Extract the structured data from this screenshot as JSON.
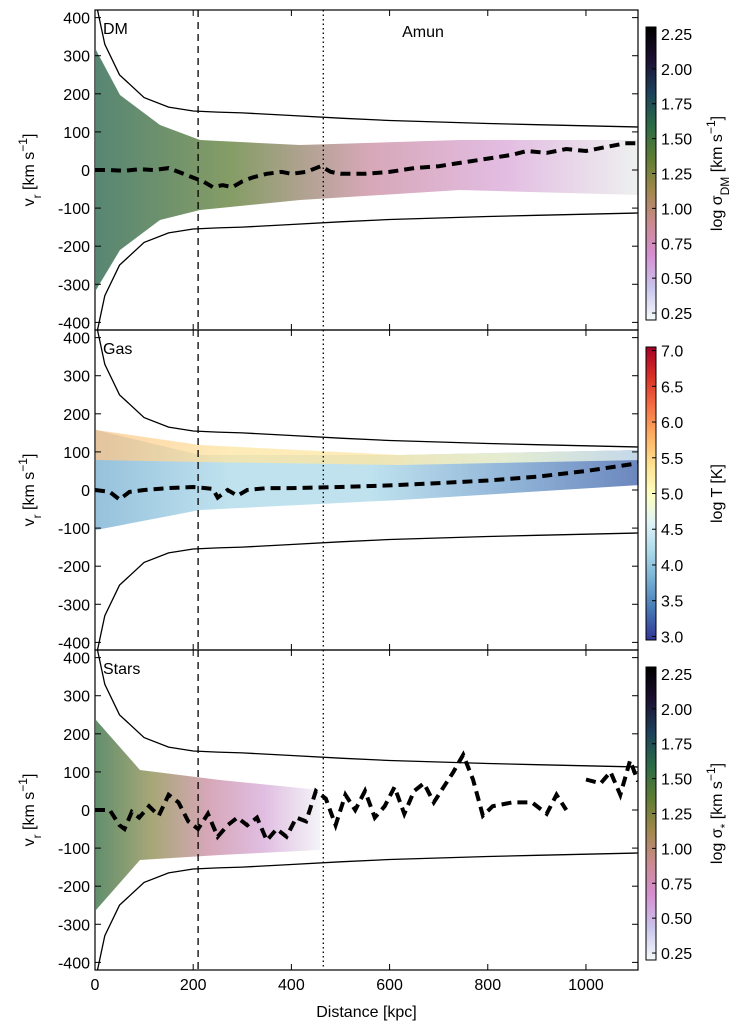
{
  "chart_data": [
    {
      "type": "line",
      "label": "DM",
      "title": "Amun",
      "ylabel": [
        "v",
        "r",
        " [km s",
        "−1",
        "]"
      ],
      "xlim": [
        0,
        1106
      ],
      "ylim": [
        -420,
        420
      ],
      "yticks": [
        -400,
        -300,
        -200,
        -100,
        0,
        100,
        200,
        300,
        400
      ],
      "vlines": [
        {
          "value": 210,
          "style": "dashed"
        },
        {
          "value": 465,
          "style": "dotted"
        }
      ],
      "series": [
        {
          "color": "#000000",
          "style": "solid",
          "x": [
            5,
            20,
            50,
            100,
            150,
            200,
            250,
            300,
            400,
            500,
            600,
            700,
            800,
            900,
            1000,
            1106
          ],
          "values": [
            420,
            330,
            250,
            190,
            165,
            155,
            152,
            150,
            143,
            136,
            130,
            126,
            122,
            119,
            116,
            113
          ]
        },
        {
          "color": "#000000",
          "style": "solid",
          "x": [
            5,
            20,
            50,
            100,
            150,
            200,
            250,
            300,
            400,
            500,
            600,
            700,
            800,
            900,
            1000,
            1106
          ],
          "values": [
            -420,
            -330,
            -250,
            -190,
            -165,
            -155,
            -152,
            -150,
            -143,
            -136,
            -130,
            -126,
            -122,
            -119,
            -116,
            -113
          ]
        },
        {
          "color": "#000000",
          "style": "thickdash",
          "x": [
            0,
            30,
            60,
            90,
            120,
            150,
            170,
            200,
            220,
            240,
            260,
            280,
            300,
            320,
            350,
            380,
            400,
            430,
            460,
            480,
            500,
            550,
            600,
            650,
            700,
            750,
            800,
            850,
            880,
            920,
            960,
            1000,
            1040,
            1080,
            1106
          ],
          "values": [
            0,
            0,
            -2,
            2,
            0,
            5,
            -5,
            -20,
            -30,
            -45,
            -40,
            -45,
            -30,
            -20,
            -10,
            -5,
            -10,
            -5,
            10,
            -5,
            -10,
            -10,
            -5,
            5,
            10,
            20,
            30,
            40,
            50,
            45,
            55,
            50,
            60,
            70,
            70
          ]
        }
      ],
      "colorbar": {
        "label": [
          "log σ",
          "DM",
          " [km s",
          "−1",
          "]"
        ],
        "lim": [
          0.2,
          2.3
        ],
        "ticks": [
          0.25,
          {
            "value": 0.5,
            "label": "0.50"
          },
          0.75,
          {
            "value": 1,
            "label": "1.00"
          },
          1.25,
          {
            "value": 1.5,
            "label": "1.50"
          },
          1.75,
          {
            "value": 2,
            "label": "2.00"
          },
          2.25
        ],
        "colors": [
          "#f5fbfb",
          "#c9c4ec",
          "#d58fd0",
          "#c98a8f",
          "#a0884c",
          "#5c7c33",
          "#2a6a47",
          "#1d3f5a",
          "#1c1030",
          "#000000"
        ]
      }
    },
    {
      "type": "line",
      "label": "Gas",
      "ylabel": [
        "v",
        "r",
        " [km s",
        "−1",
        "]"
      ],
      "xlim": [
        0,
        1106
      ],
      "ylim": [
        -420,
        420
      ],
      "yticks": [
        -400,
        -300,
        -200,
        -100,
        0,
        100,
        200,
        300,
        400
      ],
      "vlines": [
        {
          "value": 210,
          "style": "dashed"
        },
        {
          "value": 465,
          "style": "dotted"
        }
      ],
      "series": [
        {
          "color": "#000000",
          "style": "solid",
          "x": [
            5,
            20,
            50,
            100,
            150,
            200,
            250,
            300,
            400,
            500,
            600,
            700,
            800,
            900,
            1000,
            1106
          ],
          "values": [
            420,
            330,
            250,
            190,
            165,
            155,
            152,
            150,
            143,
            136,
            130,
            126,
            122,
            119,
            116,
            113
          ]
        },
        {
          "color": "#000000",
          "style": "solid",
          "x": [
            5,
            20,
            50,
            100,
            150,
            200,
            250,
            300,
            400,
            500,
            600,
            700,
            800,
            900,
            1000,
            1106
          ],
          "values": [
            -420,
            -330,
            -250,
            -190,
            -165,
            -155,
            -152,
            -150,
            -143,
            -136,
            -130,
            -126,
            -122,
            -119,
            -116,
            -113
          ]
        },
        {
          "color": "#000000",
          "style": "thickdash",
          "x": [
            0,
            30,
            50,
            70,
            100,
            150,
            200,
            240,
            250,
            270,
            290,
            310,
            350,
            400,
            500,
            600,
            700,
            800,
            900,
            1000,
            1106
          ],
          "values": [
            0,
            -5,
            -25,
            -5,
            0,
            5,
            8,
            3,
            -20,
            0,
            -15,
            0,
            5,
            5,
            8,
            12,
            18,
            25,
            35,
            50,
            70
          ]
        }
      ],
      "colorbar": {
        "label": [
          "log T [K]"
        ],
        "lim": [
          2.95,
          7.05
        ],
        "ticks": [
          {
            "value": 3,
            "label": "3.0"
          },
          3.5,
          {
            "value": 4,
            "label": "4.0"
          },
          4.5,
          {
            "value": 5,
            "label": "5.0"
          },
          5.5,
          {
            "value": 6,
            "label": "6.0"
          },
          6.5,
          {
            "value": 7,
            "label": "7.0"
          }
        ],
        "colors": [
          "#313695",
          "#4575b4",
          "#74add1",
          "#abd9e9",
          "#e0f3f8",
          "#ffffbf",
          "#fee090",
          "#fdae61",
          "#f46d43",
          "#d73027",
          "#a50026"
        ]
      }
    },
    {
      "type": "line",
      "label": "Stars",
      "ylabel": [
        "v",
        "r",
        " [km s",
        "−1",
        "]"
      ],
      "xlabel": "Distance [kpc]",
      "xlim": [
        0,
        1106
      ],
      "ylim": [
        -420,
        420
      ],
      "xticks": [
        0,
        200,
        400,
        600,
        800,
        1000
      ],
      "yticks": [
        -400,
        -300,
        -200,
        -100,
        0,
        100,
        200,
        300,
        400
      ],
      "vlines": [
        {
          "value": 210,
          "style": "dashed"
        },
        {
          "value": 465,
          "style": "dotted"
        }
      ],
      "series": [
        {
          "color": "#000000",
          "style": "solid",
          "x": [
            5,
            20,
            50,
            100,
            150,
            200,
            250,
            300,
            400,
            500,
            600,
            700,
            800,
            900,
            1000,
            1106
          ],
          "values": [
            420,
            330,
            250,
            190,
            165,
            155,
            152,
            150,
            143,
            136,
            130,
            126,
            122,
            119,
            116,
            113
          ]
        },
        {
          "color": "#000000",
          "style": "solid",
          "x": [
            5,
            20,
            50,
            100,
            150,
            200,
            250,
            300,
            400,
            500,
            600,
            700,
            800,
            900,
            1000,
            1106
          ],
          "values": [
            -420,
            -330,
            -250,
            -190,
            -165,
            -155,
            -152,
            -150,
            -143,
            -136,
            -130,
            -126,
            -122,
            -119,
            -116,
            -113
          ]
        },
        {
          "color": "#000000",
          "style": "thickdash",
          "x": [
            0,
            30,
            50,
            60,
            75,
            90,
            110,
            130,
            150,
            170,
            190,
            210,
            230,
            250,
            270,
            290,
            310,
            330,
            350,
            370,
            390,
            410,
            430,
            450,
            470,
            490,
            510,
            530,
            550,
            570,
            590,
            610,
            630,
            650,
            670,
            690,
            710,
            730,
            750,
            770,
            790,
            810,
            850,
            890,
            920,
            940,
            960,
            980,
            1000,
            1030,
            1050,
            1070,
            1090,
            1106
          ],
          "values": [
            0,
            0,
            -40,
            -50,
            -5,
            -20,
            10,
            -15,
            40,
            20,
            -30,
            -50,
            -10,
            -70,
            -40,
            -20,
            -40,
            -20,
            -80,
            -50,
            -70,
            -20,
            -30,
            50,
            30,
            -40,
            40,
            0,
            50,
            -20,
            10,
            60,
            -10,
            50,
            70,
            20,
            60,
            100,
            145,
            80,
            -15,
            10,
            20,
            20,
            -10,
            40,
            0,
            null,
            80,
            70,
            100,
            40,
            130,
            75
          ]
        }
      ],
      "colorbar": {
        "label": [
          "log σ",
          "*",
          " [km s",
          "−1",
          "]"
        ],
        "lim": [
          0.2,
          2.3
        ],
        "ticks": [
          0.25,
          {
            "value": 0.5,
            "label": "0.50"
          },
          0.75,
          {
            "value": 1,
            "label": "1.00"
          },
          1.25,
          {
            "value": 1.5,
            "label": "1.50"
          },
          1.75,
          {
            "value": 2,
            "label": "2.00"
          },
          2.25
        ],
        "colors": [
          "#f5fbfb",
          "#c9c4ec",
          "#d58fd0",
          "#c98a8f",
          "#a0884c",
          "#5c7c33",
          "#2a6a47",
          "#1d3f5a",
          "#1c1030",
          "#000000"
        ]
      }
    }
  ]
}
